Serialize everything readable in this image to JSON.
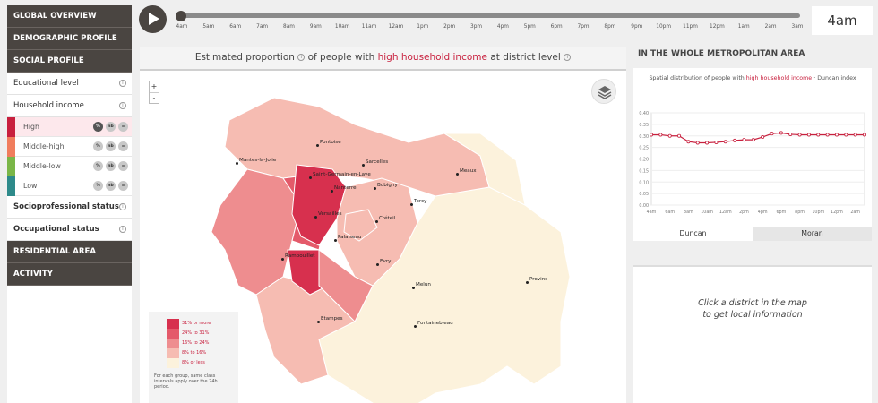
{
  "sidebar": {
    "global": "GLOBAL OVERVIEW",
    "demographic": "DEMOGRAPHIC PROFILE",
    "social": "SOCIAL PROFILE",
    "educational": "Educational level",
    "household": "Household income",
    "sub": [
      {
        "label": "High",
        "color": "#c8203e"
      },
      {
        "label": "Middle-high",
        "color": "#f07d5d"
      },
      {
        "label": "Middle-low",
        "color": "#7ab648"
      },
      {
        "label": "Low",
        "color": "#2e8a8a"
      }
    ],
    "socioprof": "Socioprofessional status",
    "occupational": "Occupational status",
    "residential": "RESIDENTIAL AREA",
    "activity": "ACTIVITY",
    "btn_pct": "%",
    "btn_nb": "nb",
    "btn_eq": "="
  },
  "timeline": {
    "ticks": [
      "4am",
      "5am",
      "6am",
      "7am",
      "8am",
      "9am",
      "10am",
      "11am",
      "12am",
      "1pm",
      "2pm",
      "3pm",
      "4pm",
      "5pm",
      "6pm",
      "7pm",
      "8pm",
      "9pm",
      "10pm",
      "11pm",
      "12pm",
      "1am",
      "2am",
      "3am"
    ],
    "current": "4am"
  },
  "map": {
    "title_pre": "Estimated proportion",
    "title_mid": "of people with",
    "title_hl": "high household income",
    "title_post": "at district level",
    "zoom_in": "+",
    "zoom_out": "-",
    "cities": [
      {
        "name": "Pontoise"
      },
      {
        "name": "Mantes-la-Jolie"
      },
      {
        "name": "Sarcelles"
      },
      {
        "name": "Meaux"
      },
      {
        "name": "Saint-Germain-en-Laye"
      },
      {
        "name": "Bobigny"
      },
      {
        "name": "Nanterre"
      },
      {
        "name": "Torcy"
      },
      {
        "name": "Versailles"
      },
      {
        "name": "Créteil"
      },
      {
        "name": "Palaiseau"
      },
      {
        "name": "Rambouillet"
      },
      {
        "name": "Evry"
      },
      {
        "name": "Melun"
      },
      {
        "name": "Provins"
      },
      {
        "name": "Etampes"
      },
      {
        "name": "Fontainebleau"
      }
    ],
    "legend": [
      {
        "label": "31% or more",
        "color": "#d7304e"
      },
      {
        "label": "24% to 31%",
        "color": "#e45a6a"
      },
      {
        "label": "16% to 24%",
        "color": "#ee8d8f"
      },
      {
        "label": "8% to 16%",
        "color": "#f6bcb2"
      },
      {
        "label": "8% or less",
        "color": "#fcf2dc"
      }
    ],
    "legend_note": "For each group, same class intervals apply over the 24h period."
  },
  "right": {
    "title": "IN THE WHOLE METROPOLITAN AREA",
    "chart_sub_pre": "Spatial distribution of people with",
    "chart_sub_hl": "high household income",
    "chart_sub_post": "· Duncan index",
    "tab_duncan": "Duncan",
    "tab_moran": "Moran",
    "local_msg_1": "Click a district in the map",
    "local_msg_2": "to get local information"
  },
  "chart_data": {
    "type": "line",
    "title": "",
    "xlabel": "",
    "ylabel": "",
    "x": [
      "4am",
      "5am",
      "6am",
      "7am",
      "8am",
      "9am",
      "10am",
      "11am",
      "12am",
      "1pm",
      "2pm",
      "3pm",
      "4pm",
      "5pm",
      "6pm",
      "7pm",
      "8pm",
      "9pm",
      "10pm",
      "11pm",
      "12pm",
      "1am",
      "2am",
      "3am"
    ],
    "xticks": [
      "4am",
      "6am",
      "8am",
      "10am",
      "12am",
      "2pm",
      "4pm",
      "6pm",
      "8pm",
      "10pm",
      "12pm",
      "2am"
    ],
    "yticks": [
      "0.40",
      "0.35",
      "0.30",
      "0.25",
      "0.20",
      "0.15",
      "0.10",
      "0.05",
      "0.00"
    ],
    "values": [
      0.305,
      0.305,
      0.3,
      0.3,
      0.275,
      0.27,
      0.27,
      0.272,
      0.275,
      0.28,
      0.283,
      0.283,
      0.295,
      0.31,
      0.313,
      0.307,
      0.305,
      0.305,
      0.305,
      0.305,
      0.305,
      0.305,
      0.305,
      0.305
    ],
    "ylim": [
      0,
      0.4
    ],
    "color": "#c8203e",
    "grid": true
  }
}
